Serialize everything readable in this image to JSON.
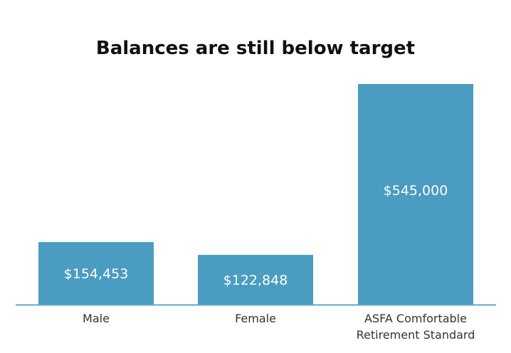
{
  "chart_data": {
    "type": "bar",
    "title": "Balances are still below target",
    "xlabel": "",
    "ylabel": "",
    "categories": [
      [
        "Male"
      ],
      [
        "Female"
      ],
      [
        "ASFA Comfortable",
        "Retirement Standard"
      ]
    ],
    "values": [
      154453,
      122848,
      545000
    ],
    "value_labels": [
      "$154,453",
      "$122,848",
      "$545,000"
    ],
    "ylim": [
      0,
      545000
    ],
    "grid": false,
    "legend": "none",
    "colors": {
      "bar": "#4a9cc1",
      "axis": "#5aa8cc"
    }
  }
}
